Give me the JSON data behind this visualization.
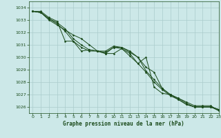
{
  "title": "Graphe pression niveau de la mer (hPa)",
  "background_color": "#cce8e8",
  "grid_color": "#aacccc",
  "line_color": "#1a4a1a",
  "xlim": [
    -0.5,
    23
  ],
  "ylim": [
    1025.5,
    1034.5
  ],
  "yticks": [
    1026,
    1027,
    1028,
    1029,
    1030,
    1031,
    1032,
    1033,
    1034
  ],
  "xticks": [
    0,
    1,
    2,
    3,
    4,
    5,
    6,
    7,
    8,
    9,
    10,
    11,
    12,
    13,
    14,
    15,
    16,
    17,
    18,
    19,
    20,
    21,
    22,
    23
  ],
  "series": [
    [
      1033.7,
      1033.6,
      1033.0,
      1032.6,
      1032.2,
      1031.8,
      1031.5,
      1031.0,
      1030.5,
      1030.3,
      1030.3,
      1030.7,
      1030.3,
      1029.5,
      1030.0,
      1027.6,
      1027.1,
      1027.0,
      1026.7,
      1026.4,
      1026.1,
      1026.1,
      1026.1,
      1025.7
    ],
    [
      1033.7,
      1033.6,
      1033.1,
      1032.7,
      1032.1,
      1031.3,
      1030.5,
      1030.6,
      1030.5,
      1030.3,
      1030.8,
      1030.7,
      1030.1,
      1029.5,
      1028.8,
      1028.0,
      1027.4,
      1026.9,
      1026.6,
      1026.2,
      1026.0,
      1026.0,
      1026.0,
      1025.7
    ],
    [
      1033.7,
      1033.6,
      1033.1,
      1032.8,
      1032.3,
      1031.5,
      1031.0,
      1030.6,
      1030.5,
      1030.4,
      1030.8,
      1030.8,
      1030.4,
      1030.0,
      1028.9,
      1028.2,
      1027.5,
      1027.0,
      1026.6,
      1026.2,
      1026.0,
      1026.0,
      1026.0,
      1025.8
    ],
    [
      1033.7,
      1033.7,
      1033.2,
      1032.9,
      1031.3,
      1031.3,
      1030.8,
      1030.5,
      1030.5,
      1030.5,
      1030.9,
      1030.8,
      1030.5,
      1030.0,
      1029.2,
      1028.8,
      1027.5,
      1027.0,
      1026.7,
      1026.3,
      1026.0,
      1026.0,
      1026.0,
      1025.8
    ]
  ],
  "figsize": [
    3.2,
    2.0
  ],
  "dpi": 100
}
